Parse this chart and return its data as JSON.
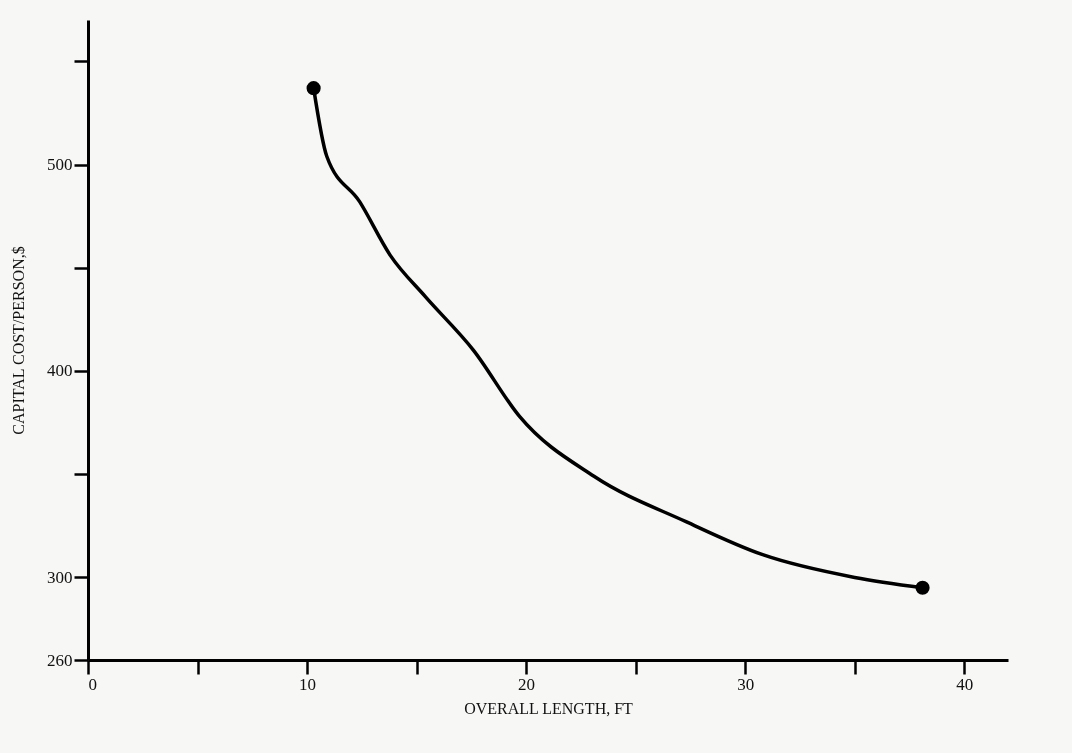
{
  "chart_data": {
    "type": "line",
    "xlabel": "OVERALL LENGTH, FT",
    "ylabel": "CAPITAL COST/PERSON,$",
    "xlim": [
      0,
      42
    ],
    "ylim": [
      260,
      570
    ],
    "xticks": [
      0,
      {
        "value": 5,
        "label": null
      },
      10,
      {
        "value": 15,
        "label": null
      },
      20,
      {
        "value": 25,
        "label": null
      },
      30,
      {
        "value": 35,
        "label": null
      },
      40
    ],
    "yticks": [
      260,
      300,
      {
        "value": 350,
        "label": null
      },
      400,
      {
        "value": 450,
        "label": null
      },
      500,
      {
        "value": 550,
        "label": null
      }
    ],
    "series": [
      {
        "type": "line",
        "color": "#000000",
        "x": [
          10.3,
          10.9,
          12.4,
          13.8,
          15.4,
          17.6,
          19.7,
          23.1,
          27.3,
          30.8,
          35.0,
          38.1
        ],
        "values": [
          537,
          504,
          482,
          456,
          436,
          410,
          378,
          349,
          327,
          311,
          300,
          295
        ]
      },
      {
        "type": "scatter",
        "marker": "circle",
        "color": "#000000",
        "x": [
          10.3,
          38.1
        ],
        "values": [
          537,
          295
        ]
      }
    ]
  }
}
